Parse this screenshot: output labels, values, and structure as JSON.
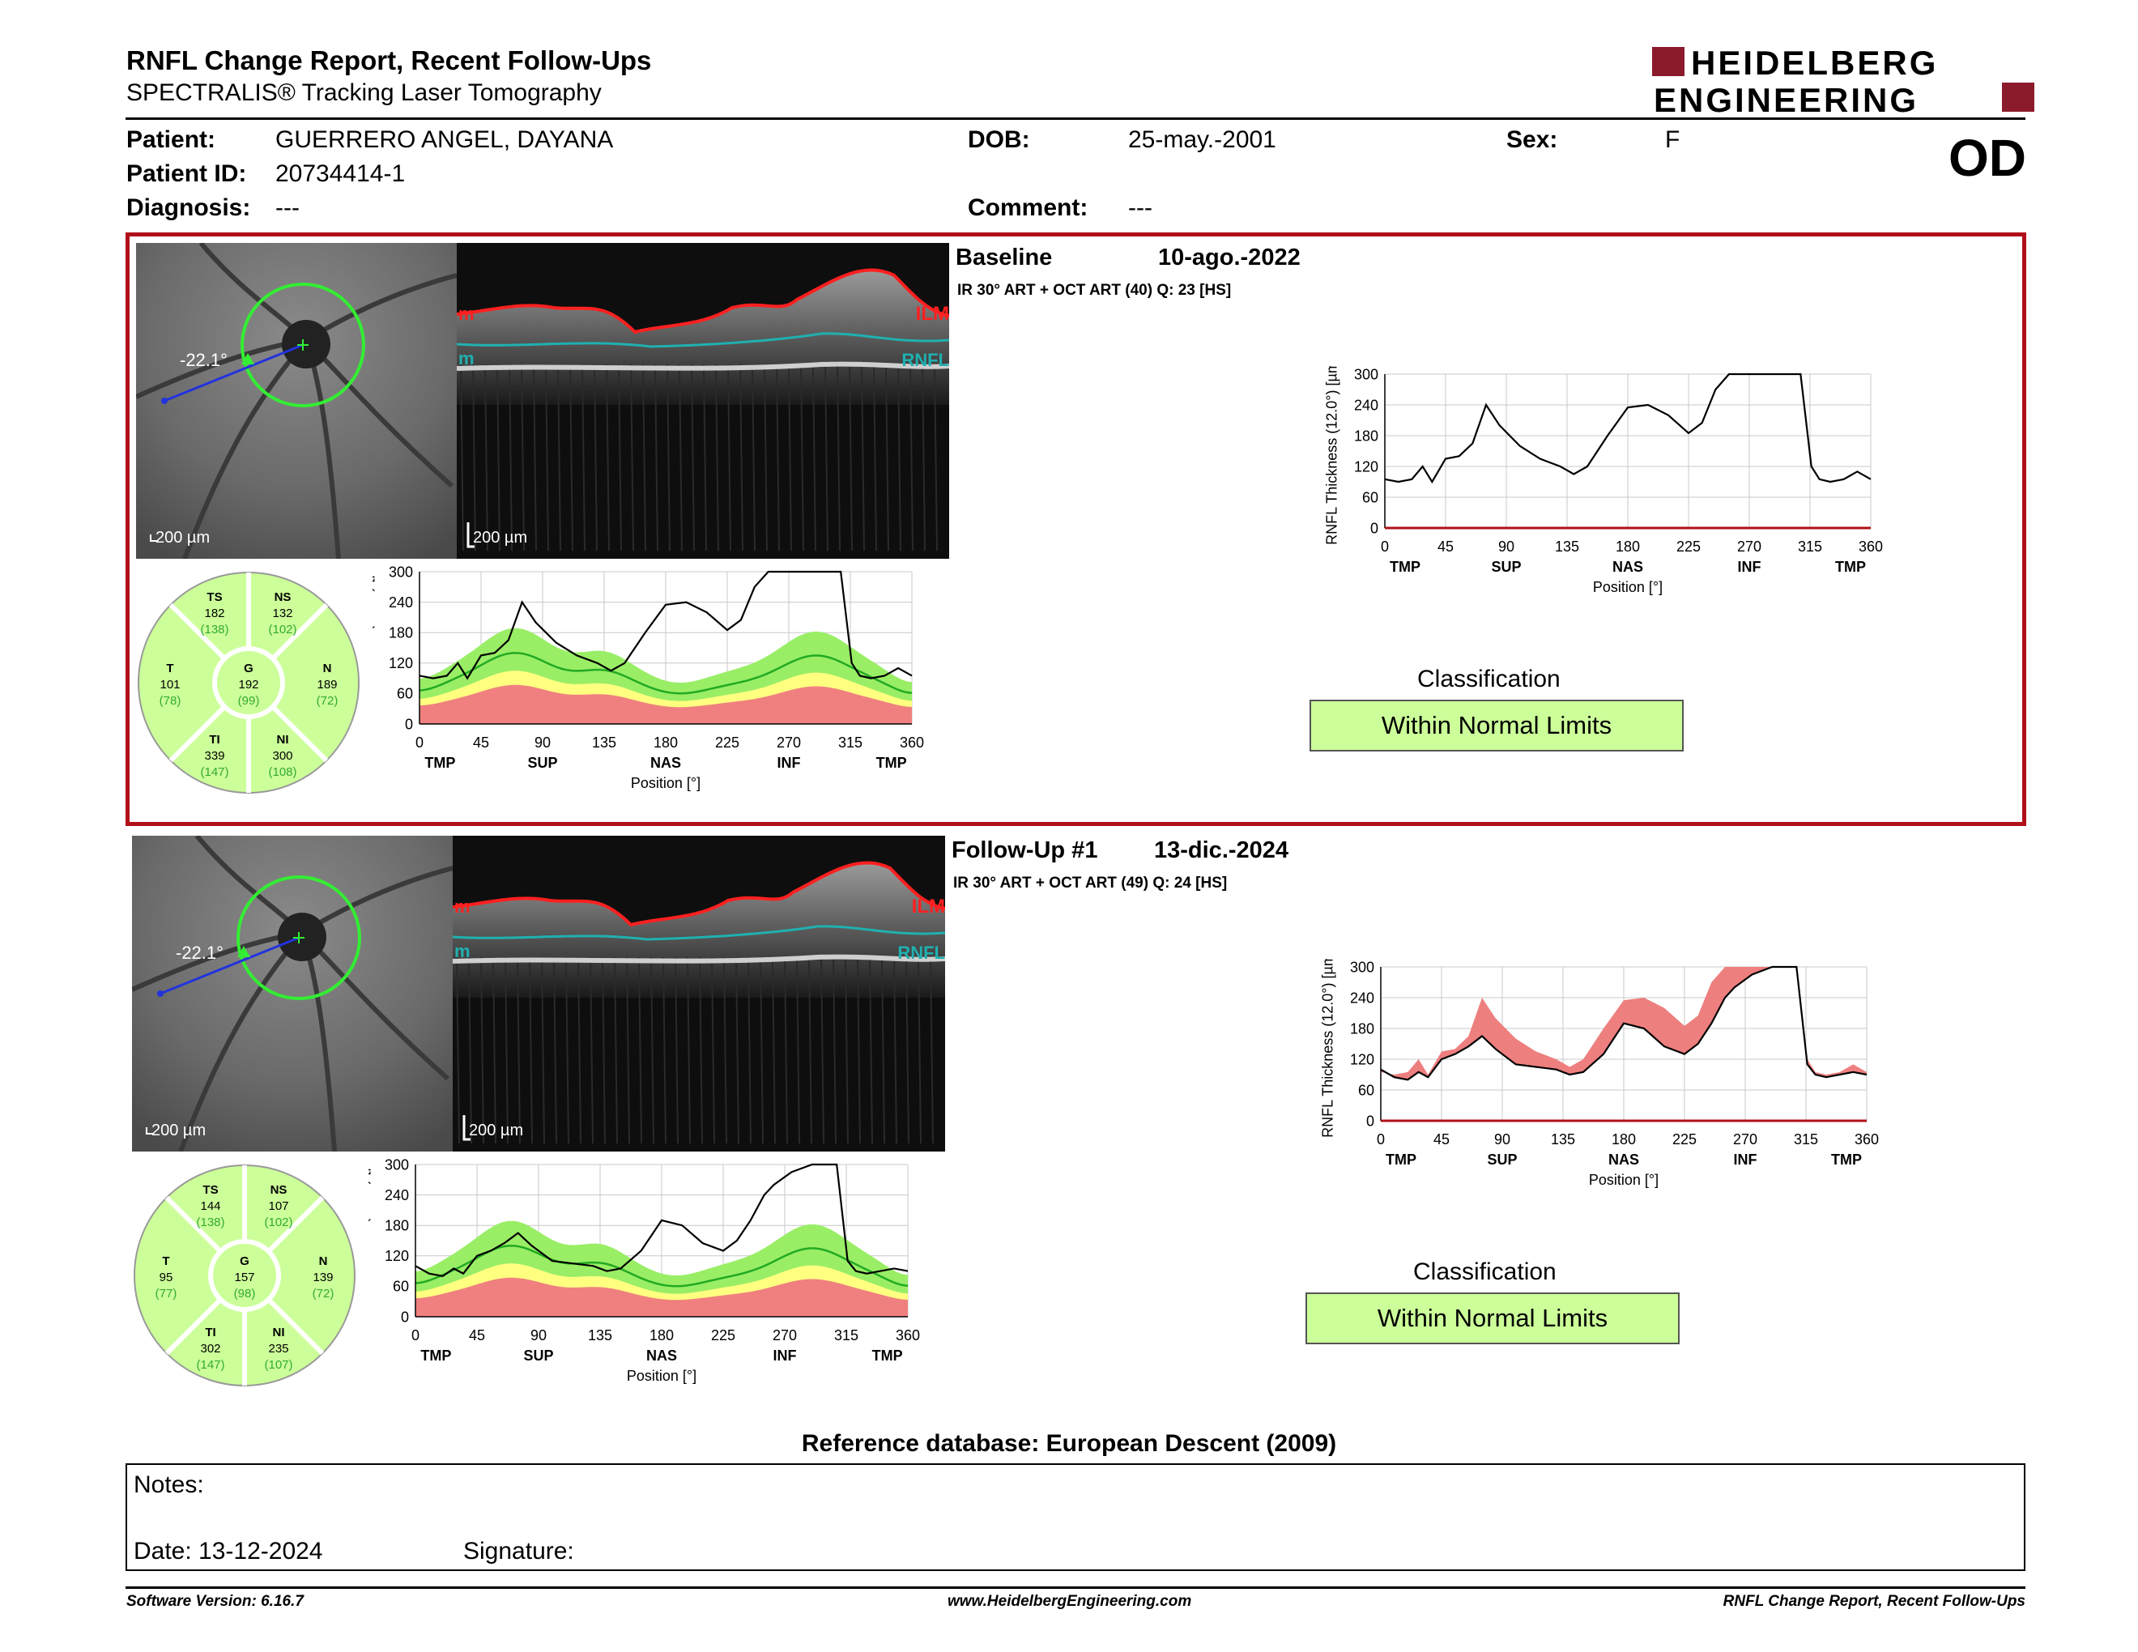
{
  "report": {
    "title": "RNFL Change Report, Recent Follow-Ups",
    "subtitle": "SPECTRALIS® Tracking Laser Tomography",
    "eye": "OD"
  },
  "brand": {
    "line1": "HEIDELBERG",
    "line2": "ENGINEERING",
    "color": "#8b1a2b"
  },
  "patient": {
    "label_patient": "Patient:",
    "name": "GUERRERO ANGEL, DAYANA",
    "label_id": "Patient ID:",
    "id": "20734414-1",
    "label_diagnosis": "Diagnosis:",
    "diagnosis": "---",
    "label_dob": "DOB:",
    "dob": "25-may.-2001",
    "label_comment": "Comment:",
    "comment": "---",
    "label_sex": "Sex:",
    "sex": "F"
  },
  "colors": {
    "panel_border": "#b0101a",
    "wnl": "#ccff99",
    "ilm": "#ff2020",
    "rnfl": "#20b0b0",
    "green_band": "#99ee66",
    "yellow_band": "#ffff80",
    "red_band": "#f08080",
    "green_line": "#22aa22"
  },
  "common": {
    "angle": "-22.1°",
    "scale_fundus": "200 µm",
    "scale_oct": "200 µm",
    "ilm_label": "ILM",
    "rnfl_label": "RNFL",
    "ilm_left": "m",
    "rnfl_left": "m",
    "axis_ylabel": "RNFL Thickness (12.0°) [µm]",
    "axis_xlabel": "Position [°]",
    "x_ticks": [
      "0",
      "45",
      "90",
      "135",
      "180",
      "225",
      "270",
      "315",
      "360"
    ],
    "y_ticks": [
      "0",
      "60",
      "120",
      "180",
      "240",
      "300"
    ],
    "region_labels": [
      "TMP",
      "SUP",
      "NAS",
      "INF",
      "TMP"
    ],
    "classification_title": "Classification"
  },
  "exams": [
    {
      "label": "Baseline",
      "date": "10-ago.-2022",
      "info": "IR 30° ART + OCT ART (40) Q: 23 [HS]",
      "classification": "Within Normal Limits",
      "sectors": {
        "TS": {
          "name": "TS",
          "value": "182",
          "normal": "(138)"
        },
        "NS": {
          "name": "NS",
          "value": "132",
          "normal": "(102)"
        },
        "T": {
          "name": "T",
          "value": "101",
          "normal": "(78)"
        },
        "G": {
          "name": "G",
          "value": "192",
          "normal": "(99)"
        },
        "N": {
          "name": "N",
          "value": "189",
          "normal": "(72)"
        },
        "TI": {
          "name": "TI",
          "value": "339",
          "normal": "(147)"
        },
        "NI": {
          "name": "NI",
          "value": "300",
          "normal": "(108)"
        }
      }
    },
    {
      "label": "Follow-Up #1",
      "date": "13-dic.-2024",
      "info": "IR 30° ART + OCT ART (49) Q: 24 [HS]",
      "classification": "Within Normal Limits",
      "sectors": {
        "TS": {
          "name": "TS",
          "value": "144",
          "normal": "(138)"
        },
        "NS": {
          "name": "NS",
          "value": "107",
          "normal": "(102)"
        },
        "T": {
          "name": "T",
          "value": "95",
          "normal": "(77)"
        },
        "G": {
          "name": "G",
          "value": "157",
          "normal": "(98)"
        },
        "N": {
          "name": "N",
          "value": "139",
          "normal": "(72)"
        },
        "TI": {
          "name": "TI",
          "value": "302",
          "normal": "(147)"
        },
        "NI": {
          "name": "NI",
          "value": "235",
          "normal": "(107)"
        }
      }
    }
  ],
  "chart_data": [
    {
      "type": "line",
      "xlabel": "Position [°]",
      "ylabel": "RNFL Thickness (12.0°) [µm]",
      "xlim": [
        0,
        360
      ],
      "ylim": [
        0,
        300
      ],
      "series": [
        {
          "x": [
            0,
            10,
            20,
            28,
            35,
            45,
            55,
            65,
            75,
            85,
            100,
            115,
            130,
            140,
            150,
            165,
            180,
            195,
            210,
            225,
            235,
            245,
            255,
            262,
            275,
            290,
            300,
            308,
            316,
            322,
            330,
            340,
            350,
            360
          ],
          "values": [
            95,
            90,
            95,
            120,
            90,
            135,
            140,
            165,
            240,
            200,
            160,
            135,
            120,
            105,
            120,
            180,
            235,
            240,
            220,
            185,
            205,
            270,
            300,
            300,
            300,
            300,
            300,
            300,
            120,
            95,
            90,
            95,
            110,
            95
          ]
        }
      ]
    },
    {
      "type": "line",
      "xlabel": "Position [°]",
      "ylabel": "RNFL Thickness (12.0°) [µm]",
      "xlim": [
        0,
        360
      ],
      "ylim": [
        0,
        300
      ],
      "series": [
        {
          "x": [
            0,
            10,
            20,
            28,
            35,
            45,
            55,
            65,
            75,
            85,
            100,
            115,
            130,
            140,
            150,
            165,
            180,
            195,
            210,
            225,
            235,
            245,
            255,
            262,
            275,
            290,
            300,
            308,
            316,
            322,
            330,
            340,
            350,
            360
          ],
          "values": [
            100,
            85,
            80,
            95,
            85,
            120,
            130,
            145,
            165,
            140,
            110,
            105,
            100,
            90,
            95,
            130,
            190,
            180,
            145,
            130,
            150,
            190,
            240,
            260,
            285,
            300,
            300,
            300,
            110,
            90,
            85,
            90,
            95,
            90
          ]
        }
      ]
    }
  ],
  "reference_db": "Reference database: European Descent (2009)",
  "notes": {
    "label": "Notes:",
    "date_label": "Date: 13-12-2024",
    "signature_label": "Signature:"
  },
  "footer": {
    "left": "Software Version: 6.16.7",
    "center": "www.HeidelbergEngineering.com",
    "right": "RNFL Change Report, Recent Follow-Ups"
  }
}
